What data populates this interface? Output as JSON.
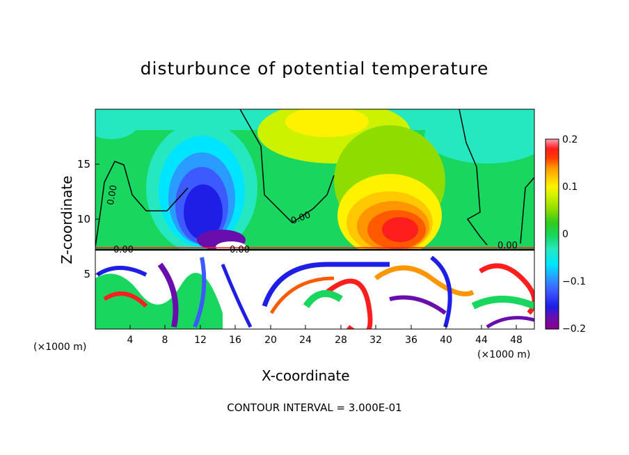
{
  "chart_data": {
    "type": "heatmap",
    "title": "disturbunce of potential temperature",
    "xlabel": "X-coordinate",
    "ylabel": "Z-coordinate",
    "x_unit_left": "(×1000 m)",
    "x_unit_right": "(×1000 m)",
    "x_ticks": [
      "4",
      "8",
      "12",
      "16",
      "20",
      "24",
      "28",
      "32",
      "36",
      "40",
      "44",
      "48"
    ],
    "y_ticks": [
      "5",
      "10",
      "15"
    ],
    "xlim": [
      0,
      50
    ],
    "ylim": [
      0,
      20
    ],
    "colorbar": {
      "ticks": [
        "0.2",
        "0.1",
        "0",
        "−0.1",
        "−0.2"
      ],
      "range": [
        -0.2,
        0.2
      ],
      "colors": [
        "#8b008b",
        "#6a0dad",
        "#1e1ee6",
        "#3c5aff",
        "#2a9bff",
        "#00e5ff",
        "#26e8c0",
        "#19d65f",
        "#2ecc1e",
        "#8fdc00",
        "#ccf200",
        "#fff200",
        "#ffc800",
        "#ff9600",
        "#ff5a00",
        "#ff1e1e",
        "#ff5a78",
        "#ffa0b4"
      ]
    },
    "contour_labels": [
      "0.00",
      "0.00",
      "0.00",
      "0.00",
      "0.00"
    ],
    "footer": "CONTOUR INTERVAL = 3.000E-01"
  }
}
